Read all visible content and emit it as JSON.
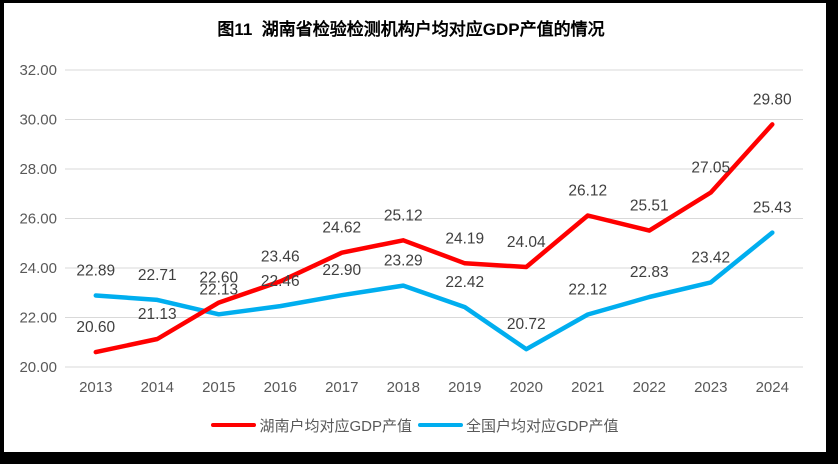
{
  "title": "图11  湖南省检验检测机构户均对应GDP产值的情况",
  "chart_data": {
    "type": "line",
    "title": "图11  湖南省检验检测机构户均对应GDP产值的情况",
    "categories": [
      "2013",
      "2014",
      "2015",
      "2016",
      "2017",
      "2018",
      "2019",
      "2020",
      "2021",
      "2022",
      "2023",
      "2024"
    ],
    "series": [
      {
        "name": "湖南户均对应GDP产值",
        "color": "#FF0000",
        "values": [
          20.6,
          21.13,
          22.6,
          23.46,
          24.62,
          25.12,
          24.19,
          24.04,
          26.12,
          25.51,
          27.05,
          29.8
        ]
      },
      {
        "name": "全国户均对应GDP产值",
        "color": "#00AEEF",
        "values": [
          22.89,
          22.71,
          22.13,
          22.46,
          22.9,
          23.29,
          22.42,
          20.72,
          22.12,
          22.83,
          23.42,
          25.43
        ]
      }
    ],
    "ylim": [
      20,
      32
    ],
    "ytick_step": 2,
    "y_tick_labels": [
      "20.00",
      "22.00",
      "24.00",
      "26.00",
      "28.00",
      "30.00",
      "32.00"
    ],
    "grid": true,
    "data_labels": true,
    "legend_position": "bottom",
    "colors": {
      "gridline": "#D9D9D9",
      "axis_text": "#595959",
      "data_label_text": "#404040",
      "title_text": "#000000",
      "frame_border": "#000000",
      "background": "#FFFFFF"
    }
  }
}
